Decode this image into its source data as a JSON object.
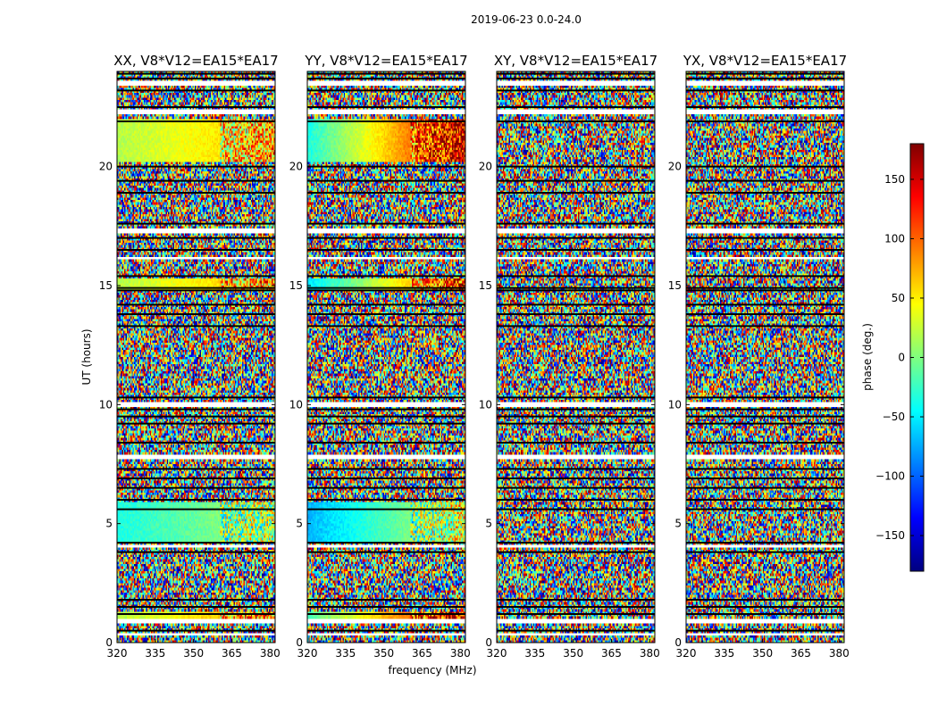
{
  "figure": {
    "suptitle": "2019-06-23 0.0-24.0",
    "xlabel": "frequency (MHz)",
    "ylabel": "UT (hours)"
  },
  "chart_data": {
    "type": "heatmap",
    "x": {
      "label": "frequency (MHz)",
      "range": [
        320,
        382
      ],
      "ticks": [
        320,
        335,
        350,
        365,
        380
      ]
    },
    "y": {
      "label": "UT (hours)",
      "range": [
        0,
        24
      ],
      "ticks": [
        0,
        5,
        10,
        15,
        20
      ]
    },
    "colorbar": {
      "label": "phase (deg.)",
      "range": [
        -180,
        180
      ],
      "ticks": [
        -150,
        -100,
        -50,
        0,
        50,
        100,
        150
      ],
      "tick_labels": [
        "−150",
        "−100",
        "−50",
        "0",
        "50",
        "100",
        "150"
      ],
      "colormap": "jet",
      "colors": [
        "#00007f",
        "#0000ff",
        "#007fff",
        "#00ffff",
        "#7fff7f",
        "#ffff00",
        "#ff7f00",
        "#ff0000",
        "#7f0000"
      ]
    },
    "panels": [
      {
        "title": "XX, V8*V12=EA15*EA17",
        "polarization": "XX"
      },
      {
        "title": "YY, V8*V12=EA15*EA17",
        "polarization": "YY"
      },
      {
        "title": "XY, V8*V12=EA15*EA17",
        "polarization": "XY"
      },
      {
        "title": "YX, V8*V12=EA15*EA17",
        "polarization": "YX"
      }
    ]
  }
}
